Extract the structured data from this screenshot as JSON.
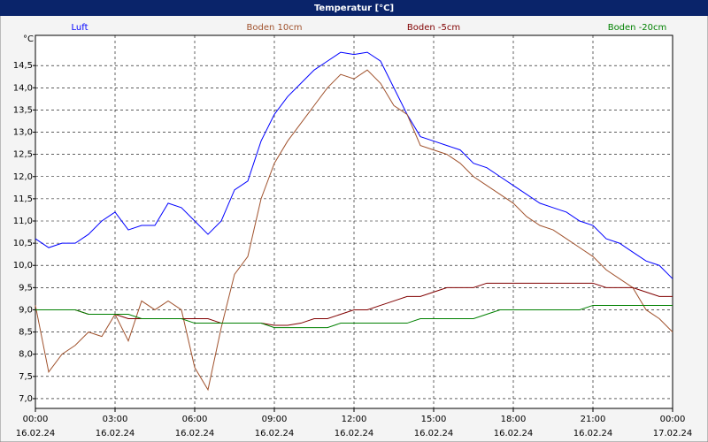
{
  "chart_data": {
    "type": "line",
    "title": "Temperatur [°C]",
    "y_unit": "°C",
    "x": [
      0,
      0.5,
      1,
      1.5,
      2,
      2.5,
      3,
      3.5,
      4,
      4.5,
      5,
      5.5,
      6,
      6.5,
      7,
      7.5,
      8,
      8.5,
      9,
      9.5,
      10,
      10.5,
      11,
      11.5,
      12,
      12.5,
      13,
      13.5,
      14,
      14.5,
      15,
      15.5,
      16,
      16.5,
      17,
      17.5,
      18,
      18.5,
      19,
      19.5,
      20,
      20.5,
      21,
      21.5,
      22,
      22.5,
      23,
      23.5,
      24
    ],
    "xlim": [
      0,
      24
    ],
    "xticks": [
      {
        "value": 0,
        "label": "00:00"
      },
      {
        "value": 3,
        "label": "03:00"
      },
      {
        "value": 6,
        "label": "06:00"
      },
      {
        "value": 9,
        "label": "09:00"
      },
      {
        "value": 12,
        "label": "12:00"
      },
      {
        "value": 15,
        "label": "15:00"
      },
      {
        "value": 18,
        "label": "18:00"
      },
      {
        "value": 21,
        "label": "21:00"
      },
      {
        "value": 24,
        "label": "00:00"
      }
    ],
    "xtick_dates": [
      "16.02.24",
      "16.02.24",
      "16.02.24",
      "16.02.24",
      "16.02.24",
      "16.02.24",
      "16.02.24",
      "16.02.24",
      "17.02.24"
    ],
    "ylim": [
      6.78,
      15.18
    ],
    "yticks": [
      {
        "value": 7,
        "label": "7,0"
      },
      {
        "value": 7.5,
        "label": "7,5"
      },
      {
        "value": 8,
        "label": "8,0"
      },
      {
        "value": 8.5,
        "label": "8,5"
      },
      {
        "value": 9,
        "label": "9,0"
      },
      {
        "value": 9.5,
        "label": "9,5"
      },
      {
        "value": 10,
        "label": "10,0"
      },
      {
        "value": 10.5,
        "label": "10,5"
      },
      {
        "value": 11,
        "label": "11,0"
      },
      {
        "value": 11.5,
        "label": "11,5"
      },
      {
        "value": 12,
        "label": "12,0"
      },
      {
        "value": 12.5,
        "label": "12,5"
      },
      {
        "value": 13,
        "label": "13,0"
      },
      {
        "value": 13.5,
        "label": "13,5"
      },
      {
        "value": 14,
        "label": "14,0"
      },
      {
        "value": 14.5,
        "label": "14,5"
      }
    ],
    "grid": true,
    "series": [
      {
        "name": "Luft",
        "color": "#0000ff",
        "values": [
          10.6,
          10.4,
          10.5,
          10.5,
          10.7,
          11.0,
          11.2,
          10.8,
          10.9,
          10.9,
          11.4,
          11.3,
          11.0,
          10.7,
          11.0,
          11.7,
          11.9,
          12.8,
          13.4,
          13.8,
          14.1,
          14.4,
          14.6,
          14.8,
          14.75,
          14.8,
          14.6,
          14.0,
          13.4,
          12.9,
          12.8,
          12.7,
          12.6,
          12.3,
          12.2,
          12.0,
          11.8,
          11.6,
          11.4,
          11.3,
          11.2,
          11.0,
          10.9,
          10.6,
          10.5,
          10.3,
          10.1,
          10.0,
          9.7
        ]
      },
      {
        "name": "Boden 10cm",
        "color": "#a0522d",
        "values": [
          9.1,
          7.6,
          8.0,
          8.2,
          8.5,
          8.4,
          8.9,
          8.3,
          9.2,
          9.0,
          9.2,
          9.0,
          7.7,
          7.2,
          8.6,
          9.8,
          10.2,
          11.5,
          12.3,
          12.8,
          13.2,
          13.6,
          14.0,
          14.3,
          14.2,
          14.4,
          14.1,
          13.6,
          13.4,
          12.7,
          12.6,
          12.5,
          12.3,
          12.0,
          11.8,
          11.6,
          11.4,
          11.1,
          10.9,
          10.8,
          10.6,
          10.4,
          10.2,
          9.9,
          9.7,
          9.5,
          9.0,
          8.8,
          8.5
        ]
      },
      {
        "name": "Boden -5cm",
        "color": "#800000",
        "values": [
          9.0,
          9.0,
          9.0,
          9.0,
          8.9,
          8.9,
          8.9,
          8.8,
          8.8,
          8.8,
          8.8,
          8.8,
          8.8,
          8.8,
          8.7,
          8.7,
          8.7,
          8.7,
          8.65,
          8.65,
          8.7,
          8.8,
          8.8,
          8.9,
          9.0,
          9.0,
          9.1,
          9.2,
          9.3,
          9.3,
          9.4,
          9.5,
          9.5,
          9.5,
          9.6,
          9.6,
          9.6,
          9.6,
          9.6,
          9.6,
          9.6,
          9.6,
          9.6,
          9.5,
          9.5,
          9.5,
          9.4,
          9.3,
          9.3
        ]
      },
      {
        "name": "Boden -20cm",
        "color": "#008000",
        "values": [
          9.0,
          9.0,
          9.0,
          9.0,
          8.9,
          8.9,
          8.9,
          8.9,
          8.8,
          8.8,
          8.8,
          8.8,
          8.7,
          8.7,
          8.7,
          8.7,
          8.7,
          8.7,
          8.6,
          8.6,
          8.6,
          8.6,
          8.6,
          8.7,
          8.7,
          8.7,
          8.7,
          8.7,
          8.7,
          8.8,
          8.8,
          8.8,
          8.8,
          8.8,
          8.9,
          9.0,
          9.0,
          9.0,
          9.0,
          9.0,
          9.0,
          9.0,
          9.1,
          9.1,
          9.1,
          9.1,
          9.1,
          9.1,
          9.1
        ]
      }
    ]
  }
}
